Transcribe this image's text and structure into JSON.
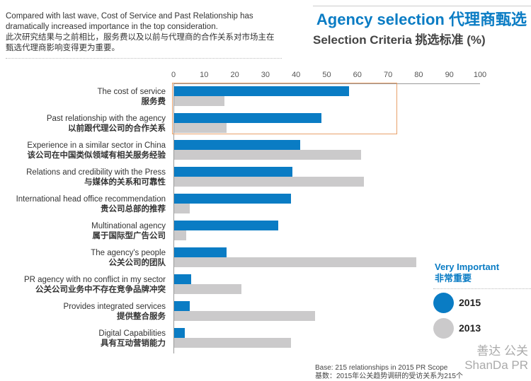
{
  "note": {
    "en": "Compared with last wave, Cost of Service and Past Relationship has dramatically increased importance in the top consideration.",
    "cn": "此次研究结果与之前相比，服务费以及以前与代理商的合作关系对市场主在甄选代理商影响变得更为重要。"
  },
  "header": {
    "title": "Agency selection 代理商甄选",
    "subtitle": "Selection Criteria 挑选标准 (%)"
  },
  "legend": {
    "title_en": "Very Important",
    "title_cn": "非常重要"
  },
  "footer": {
    "base_en": "Base: 215 relationships in 2015 PR Scope",
    "base_cn": "基数：2015年公关趋势调研的受访关系为215个"
  },
  "watermark": {
    "cn": "善达 公关",
    "en": "ShanDa PR"
  },
  "colors": {
    "2015": "#0a7cc4",
    "2013": "#cbcacb",
    "highlight": "#e8a06a"
  },
  "chart_data": {
    "type": "bar",
    "orientation": "horizontal",
    "xlim": [
      0,
      100
    ],
    "ticks": [
      "0",
      "10",
      "20",
      "30",
      "40",
      "50",
      "60",
      "70",
      "80",
      "90",
      "100"
    ],
    "categories": [
      {
        "en": "The cost of service",
        "cn": "服务费"
      },
      {
        "en": "Past relationship with the agency",
        "cn": "以前跟代理公司的合作关系"
      },
      {
        "en": "Experience in a similar sector in China",
        "cn": "该公司在中国类似领域有相关服务经验"
      },
      {
        "en": "Relations and credibility with the Press",
        "cn": "与媒体的关系和可靠性"
      },
      {
        "en": "International head office recommendation",
        "cn": "贵公司总部的推荐"
      },
      {
        "en": "Multinational agency",
        "cn": "属于国际型广告公司"
      },
      {
        "en": "The agency's people",
        "cn": "公关公司的团队"
      },
      {
        "en": "PR agency with no conflict in my sector",
        "cn": "公关公司业务中不存在竞争品牌冲突"
      },
      {
        "en": "Provides integrated services",
        "cn": "提供整合服务"
      },
      {
        "en": "Digital Capabilities",
        "cn": "具有互动营销能力"
      }
    ],
    "series": [
      {
        "name": "2015",
        "values": [
          57,
          48,
          41,
          38.5,
          38,
          34,
          17,
          5.5,
          5,
          3.5
        ]
      },
      {
        "name": "2013",
        "values": [
          16.5,
          17,
          61,
          62,
          5,
          4,
          79,
          22,
          46,
          38
        ]
      }
    ],
    "highlighted_categories": [
      0,
      1
    ]
  }
}
